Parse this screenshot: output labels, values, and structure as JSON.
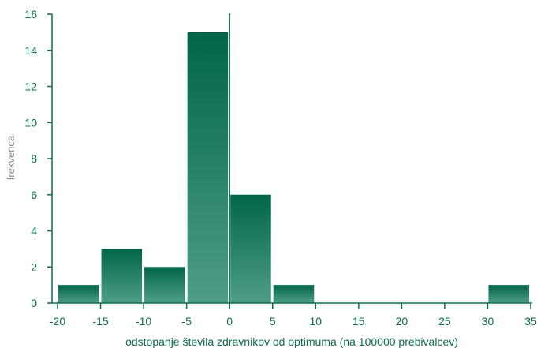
{
  "colors": {
    "axis": "#0b6b4e",
    "text": "#0b6b4e",
    "ylabel_text": "#8c8c8c",
    "bar_top": "#006548",
    "bar_bottom": "#4f9e87",
    "bar_border": "#ffffff"
  },
  "chart_data": {
    "type": "bar",
    "title": "",
    "xlabel": "odstopanje števila zdravnikov od optimuma (na 100000 prebivalcev)",
    "ylabel": "frekvenca",
    "xlim": [
      -20,
      35
    ],
    "ylim": [
      0,
      16
    ],
    "x_ticks": [
      -20,
      -15,
      -10,
      -5,
      0,
      5,
      10,
      15,
      20,
      25,
      30,
      35
    ],
    "y_ticks": [
      0,
      2,
      4,
      6,
      8,
      10,
      12,
      14,
      16
    ],
    "x_tick_labels": [
      "-20",
      "-15",
      "-10",
      "-5",
      "0",
      "5",
      "10",
      "15",
      "20",
      "25",
      "30",
      "35"
    ],
    "y_tick_labels": [
      "0",
      "2",
      "4",
      "6",
      "8",
      "10",
      "12",
      "14",
      "16"
    ],
    "bins": [
      {
        "x0": -20,
        "x1": -15,
        "count": 1
      },
      {
        "x0": -15,
        "x1": -10,
        "count": 3
      },
      {
        "x0": -10,
        "x1": -5,
        "count": 2
      },
      {
        "x0": -5,
        "x1": 0,
        "count": 15
      },
      {
        "x0": 0,
        "x1": 5,
        "count": 6
      },
      {
        "x0": 5,
        "x1": 10,
        "count": 1
      },
      {
        "x0": 10,
        "x1": 15,
        "count": 0
      },
      {
        "x0": 15,
        "x1": 20,
        "count": 0
      },
      {
        "x0": 20,
        "x1": 25,
        "count": 0
      },
      {
        "x0": 25,
        "x1": 30,
        "count": 0
      },
      {
        "x0": 30,
        "x1": 35,
        "count": 1
      }
    ],
    "reference_line_x": 0,
    "grid": false,
    "legend": "none"
  }
}
